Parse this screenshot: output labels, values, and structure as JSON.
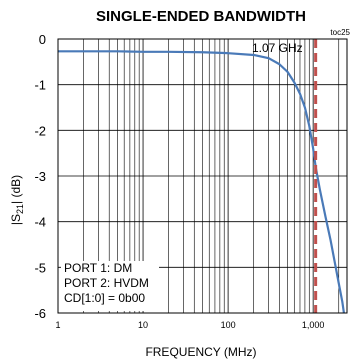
{
  "chart_data": {
    "type": "line",
    "title": "SINGLE-ENDED BANDWIDTH",
    "toc_label": "toc25",
    "xlabel": "FREQUENCY (MHz)",
    "ylabel_main": "|S",
    "ylabel_sub": "21",
    "ylabel_tail": "| (dB)",
    "x_scale": "log",
    "xlim": [
      1,
      2500
    ],
    "ylim": [
      -6,
      0
    ],
    "x_ticks": [
      {
        "value": 1,
        "label": "1"
      },
      {
        "value": 10,
        "label": "10"
      },
      {
        "value": 100,
        "label": "100"
      },
      {
        "value": 1000,
        "label": "1,000"
      }
    ],
    "y_ticks": [
      {
        "value": 0,
        "label": "0"
      },
      {
        "value": -1,
        "label": "-1"
      },
      {
        "value": -2,
        "label": "-2"
      },
      {
        "value": -3,
        "label": "-3"
      },
      {
        "value": -4,
        "label": "-4"
      },
      {
        "value": -5,
        "label": "-5"
      },
      {
        "value": -6,
        "label": "-6"
      }
    ],
    "grid": true,
    "series": [
      {
        "color": "#4a7ab8",
        "x": [
          1,
          2,
          5,
          10,
          20,
          50,
          100,
          200,
          300,
          400,
          500,
          600,
          700,
          800,
          900,
          1000,
          1070,
          1200,
          1400,
          1600,
          1800,
          2000,
          2200,
          2300
        ],
        "y": [
          -0.27,
          -0.27,
          -0.27,
          -0.28,
          -0.28,
          -0.29,
          -0.31,
          -0.35,
          -0.42,
          -0.55,
          -0.72,
          -0.95,
          -1.2,
          -1.5,
          -1.9,
          -2.4,
          -2.8,
          -3.3,
          -3.9,
          -4.4,
          -4.9,
          -5.35,
          -5.75,
          -6.0
        ]
      }
    ],
    "marker": {
      "x": 1070,
      "color": "#c0504d",
      "label": "1.07 GHz"
    },
    "notes": [
      "PORT 1: DM",
      "PORT 2: HVDM",
      "CD[1:0] = 0b00"
    ]
  }
}
